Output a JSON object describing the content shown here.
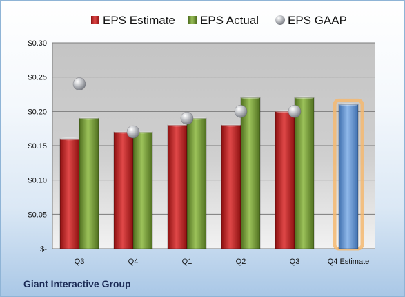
{
  "company": "Giant Interactive Group",
  "chart_data": {
    "type": "bar",
    "categories": [
      "Q3",
      "Q4",
      "Q1",
      "Q2",
      "Q3",
      "Q4 Estimate"
    ],
    "series": [
      {
        "name": "EPS Estimate",
        "color": "#cc2a2a",
        "values": [
          0.16,
          0.17,
          0.18,
          0.18,
          0.2,
          null
        ]
      },
      {
        "name": "EPS Actual",
        "color": "#7fa03a",
        "values": [
          0.19,
          0.17,
          0.19,
          0.22,
          0.22,
          null
        ]
      },
      {
        "name": "EPS GAAP",
        "color": "#b9bcc2",
        "marker": "sphere",
        "values": [
          0.24,
          0.17,
          0.19,
          0.2,
          0.2,
          null
        ]
      },
      {
        "name": "Q4 Estimate",
        "color": "#6f9fd8",
        "highlight": "#f5b870",
        "values": [
          null,
          null,
          null,
          null,
          null,
          0.21
        ]
      }
    ],
    "y_ticks": [
      "$-",
      "$0.05",
      "$0.10",
      "$0.15",
      "$0.20",
      "$0.25",
      "$0.30"
    ],
    "ylim": [
      0,
      0.3
    ],
    "grid": true,
    "legend_position": "top"
  }
}
